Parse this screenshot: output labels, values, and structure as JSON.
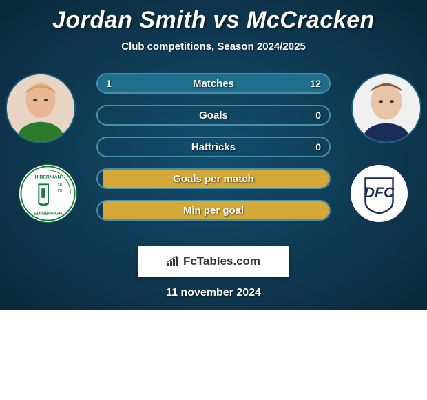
{
  "title": "Jordan Smith vs McCracken",
  "subtitle": "Club competitions, Season 2024/2025",
  "date": "11 november 2024",
  "brand": "FcTables.com",
  "player_left": {
    "name": "Jordan Smith",
    "club": "HIBERNIAN EDINBURGH"
  },
  "player_right": {
    "name": "McCracken",
    "club": "DFC"
  },
  "colors": {
    "fill_left": "#1f6e8c",
    "fill_right": "#d4a938",
    "accent": "#2b7a2b"
  },
  "stats": [
    {
      "label": "Matches",
      "left_value": "1",
      "right_value": "12",
      "left_pct": 8,
      "right_pct": 92
    },
    {
      "label": "Goals",
      "left_value": "",
      "right_value": "0",
      "left_pct": 0,
      "right_pct": 0
    },
    {
      "label": "Hattricks",
      "left_value": "",
      "right_value": "0",
      "left_pct": 0,
      "right_pct": 0
    },
    {
      "label": "Goals per match",
      "left_value": "",
      "right_value": "",
      "left_pct": 0,
      "right_pct": 98,
      "right_color": "#d4a938"
    },
    {
      "label": "Min per goal",
      "left_value": "",
      "right_value": "",
      "left_pct": 0,
      "right_pct": 98,
      "right_color": "#d4a938"
    }
  ]
}
